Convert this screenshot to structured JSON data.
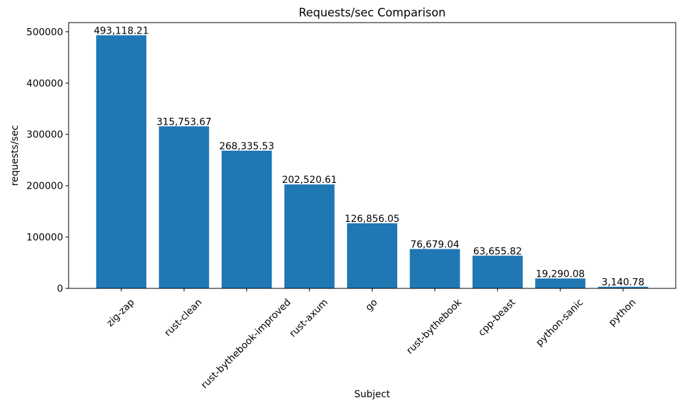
{
  "chart_data": {
    "type": "bar",
    "title": "Requests/sec Comparison",
    "xlabel": "Subject",
    "ylabel": "requests/sec",
    "categories": [
      "zig-zap",
      "rust-clean",
      "rust-bythebook-improved",
      "rust-axum",
      "go",
      "rust-bythebook",
      "cpp-beast",
      "python-sanic",
      "python"
    ],
    "values": [
      493118.21,
      315753.67,
      268335.53,
      202520.61,
      126856.05,
      76679.04,
      63655.82,
      19290.08,
      3140.78
    ],
    "value_labels": [
      "493,118.21",
      "315,753.67",
      "268,335.53",
      "202,520.61",
      "126,856.05",
      "76,679.04",
      "63,655.82",
      "19,290.08",
      "3,140.78"
    ],
    "y_ticks": [
      0,
      100000,
      200000,
      300000,
      400000,
      500000
    ],
    "y_tick_labels": [
      "0",
      "100000",
      "200000",
      "300000",
      "400000",
      "500000"
    ],
    "ylim": [
      0,
      517774
    ],
    "x_tick_rotation": 45,
    "bar_color": "#1f77b4",
    "axis_color": "#000000",
    "grid": false,
    "legend": null
  }
}
